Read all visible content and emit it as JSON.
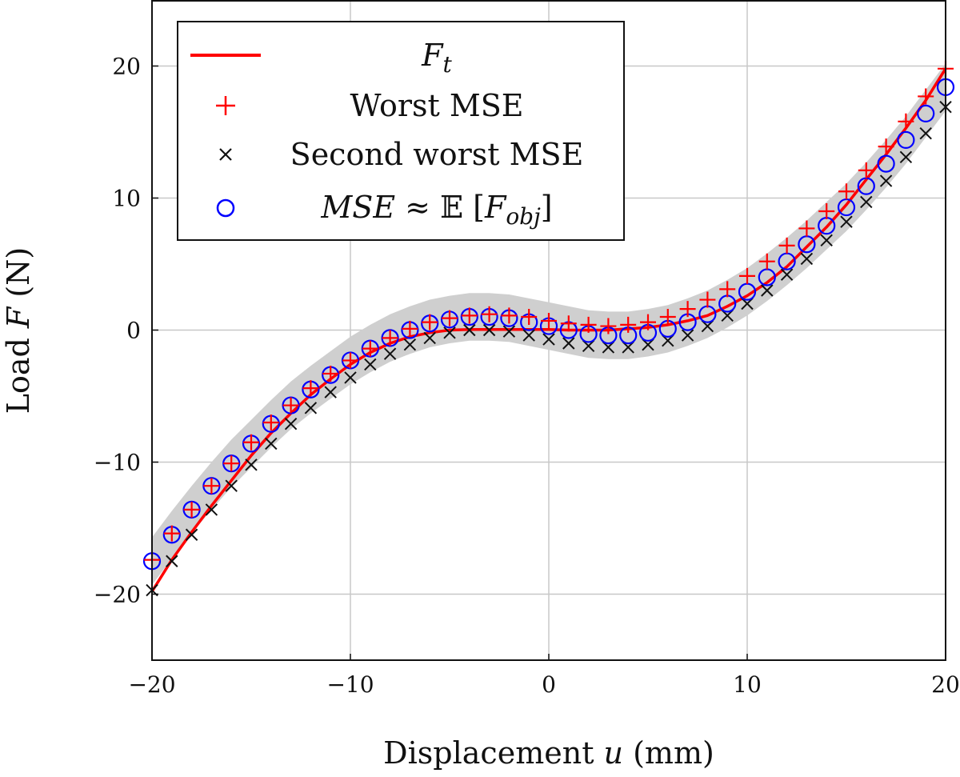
{
  "chart_data": {
    "type": "scatter",
    "title": "",
    "xlabel": {
      "prefix": "Displacement ",
      "var": "u",
      "suffix": " (mm)"
    },
    "ylabel": {
      "prefix": "Load ",
      "var": "F",
      "suffix": " (N)"
    },
    "xlim": [
      -20,
      20
    ],
    "ylim": [
      -25,
      25
    ],
    "xticks": [
      -20,
      -10,
      0,
      10,
      20
    ],
    "yticks": [
      -20,
      -10,
      0,
      10,
      20
    ],
    "xtick_labels": [
      "−20",
      "−10",
      "0",
      "10",
      "20"
    ],
    "ytick_labels": [
      "−20",
      "−10",
      "0",
      "10",
      "20"
    ],
    "grid": true,
    "legend_position": "top-left",
    "band_halfwidth": 1.8,
    "x": [
      -20,
      -19,
      -18,
      -17,
      -16,
      -15,
      -14,
      -13,
      -12,
      -11,
      -10,
      -9,
      -8,
      -7,
      -6,
      -5,
      -4,
      -3,
      -2,
      -1,
      0,
      1,
      2,
      3,
      4,
      5,
      6,
      7,
      8,
      9,
      10,
      11,
      12,
      13,
      14,
      15,
      16,
      17,
      18,
      19,
      20
    ],
    "series": [
      {
        "name_main": "F",
        "name_sub": "t",
        "kind": "line",
        "color": "#ff0000",
        "values": [
          -19.8,
          -17.4,
          -15.3,
          -13.3,
          -11.4,
          -9.5,
          -7.8,
          -6.3,
          -4.9,
          -3.7,
          -2.6,
          -1.7,
          -1.0,
          -0.5,
          -0.2,
          0.0,
          0.05,
          0.05,
          0.05,
          0.05,
          0.05,
          0.0,
          0.0,
          0.0,
          0.1,
          0.2,
          0.4,
          0.7,
          1.1,
          1.8,
          2.6,
          3.6,
          4.8,
          6.3,
          7.8,
          9.5,
          11.4,
          13.3,
          15.3,
          17.4,
          19.8
        ]
      },
      {
        "name": "Worst MSE",
        "kind": "plus",
        "color": "#ff0000",
        "values": [
          -17.4,
          -15.4,
          -13.6,
          -11.8,
          -10.1,
          -8.5,
          -7.0,
          -5.7,
          -4.4,
          -3.3,
          -2.3,
          -1.4,
          -0.6,
          0.1,
          0.6,
          0.9,
          1.1,
          1.2,
          1.1,
          1.0,
          0.7,
          0.5,
          0.4,
          0.3,
          0.4,
          0.6,
          1.0,
          1.6,
          2.3,
          3.1,
          4.1,
          5.2,
          6.4,
          7.7,
          9.0,
          10.5,
          12.1,
          13.9,
          15.8,
          17.7,
          19.8
        ]
      },
      {
        "name": "Second worst MSE",
        "kind": "cross",
        "color": "#111111",
        "values": [
          -19.7,
          -17.5,
          -15.5,
          -13.6,
          -11.8,
          -10.2,
          -8.6,
          -7.1,
          -5.9,
          -4.7,
          -3.6,
          -2.6,
          -1.8,
          -1.1,
          -0.6,
          -0.2,
          0.0,
          0.0,
          -0.1,
          -0.4,
          -0.7,
          -1.0,
          -1.2,
          -1.3,
          -1.3,
          -1.1,
          -0.8,
          -0.4,
          0.3,
          1.1,
          2.0,
          3.0,
          4.2,
          5.4,
          6.8,
          8.2,
          9.7,
          11.3,
          13.1,
          14.9,
          16.9
        ]
      },
      {
        "name_prefix": "MSE",
        "name_approx": " ≈ ",
        "name_E": "𝔼",
        "name_F": "F",
        "name_sub": "obj",
        "kind": "circle",
        "color": "#0000ff",
        "values": [
          -17.5,
          -15.5,
          -13.6,
          -11.8,
          -10.1,
          -8.6,
          -7.1,
          -5.7,
          -4.5,
          -3.4,
          -2.3,
          -1.4,
          -0.6,
          0.0,
          0.5,
          0.8,
          1.0,
          1.0,
          0.9,
          0.6,
          0.3,
          0.0,
          -0.3,
          -0.4,
          -0.4,
          -0.2,
          0.1,
          0.6,
          1.2,
          2.0,
          2.9,
          4.0,
          5.2,
          6.5,
          7.9,
          9.3,
          10.9,
          12.6,
          14.4,
          16.4,
          18.4
        ]
      }
    ]
  }
}
